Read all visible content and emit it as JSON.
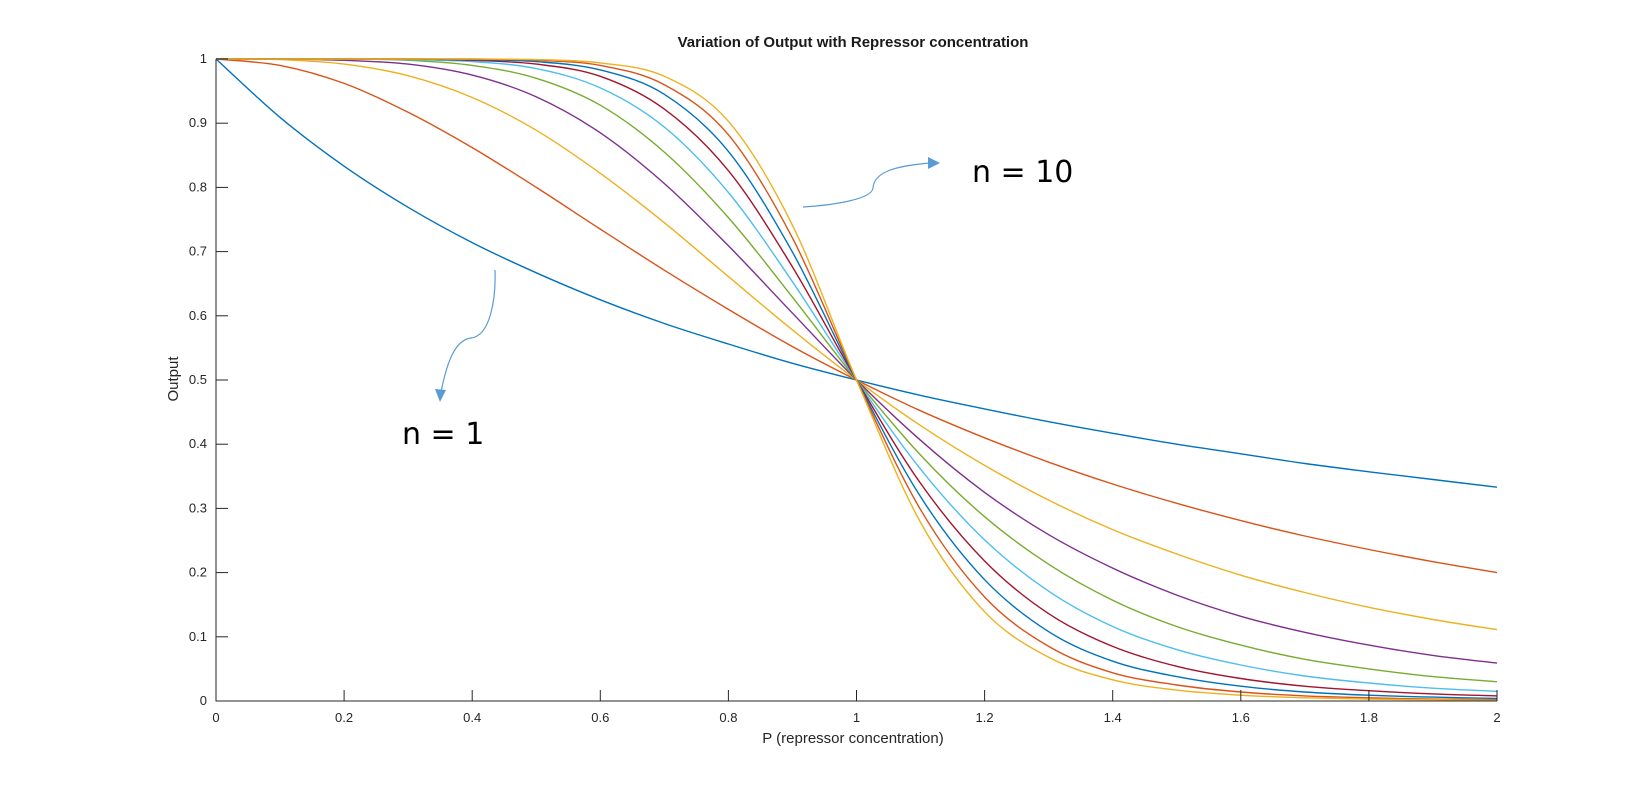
{
  "chart_data": {
    "type": "line",
    "title": "Variation of Output with Repressor concentration",
    "xlabel": "P (repressor concentration)",
    "ylabel": "Output",
    "xlim": [
      0,
      2
    ],
    "ylim": [
      0,
      1
    ],
    "x_ticks": [
      "0",
      "0.2",
      "0.4",
      "0.6",
      "0.8",
      "1",
      "1.2",
      "1.4",
      "1.6",
      "1.8",
      "2"
    ],
    "y_ticks": [
      "0",
      "0.1",
      "0.2",
      "0.3",
      "0.4",
      "0.5",
      "0.6",
      "0.7",
      "0.8",
      "0.9",
      "1"
    ],
    "grid": false,
    "legend": "none",
    "x": [
      0,
      0.1,
      0.2,
      0.3,
      0.4,
      0.5,
      0.6,
      0.7,
      0.8,
      0.9,
      1.0,
      1.1,
      1.2,
      1.3,
      1.4,
      1.5,
      1.6,
      1.7,
      1.8,
      1.9,
      2.0
    ],
    "series": [
      {
        "color": "#0072bd",
        "values": [
          1,
          0.909,
          0.833,
          0.769,
          0.714,
          0.667,
          0.625,
          0.588,
          0.556,
          0.526,
          0.5,
          0.476,
          0.455,
          0.435,
          0.417,
          0.4,
          0.385,
          0.37,
          0.357,
          0.345,
          0.333
        ]
      },
      {
        "color": "#d95319",
        "values": [
          1,
          0.99,
          0.962,
          0.917,
          0.862,
          0.8,
          0.735,
          0.671,
          0.61,
          0.552,
          0.5,
          0.452,
          0.41,
          0.372,
          0.338,
          0.308,
          0.281,
          0.257,
          0.236,
          0.217,
          0.2
        ]
      },
      {
        "color": "#edb120",
        "values": [
          1,
          0.999,
          0.992,
          0.974,
          0.94,
          0.889,
          0.822,
          0.745,
          0.661,
          0.578,
          0.5,
          0.429,
          0.367,
          0.313,
          0.267,
          0.229,
          0.196,
          0.169,
          0.146,
          0.127,
          0.111
        ]
      },
      {
        "color": "#7e2f8e",
        "values": [
          1,
          1,
          0.998,
          0.992,
          0.975,
          0.941,
          0.885,
          0.806,
          0.709,
          0.604,
          0.5,
          0.406,
          0.325,
          0.259,
          0.207,
          0.165,
          0.132,
          0.107,
          0.087,
          0.071,
          0.059
        ]
      },
      {
        "color": "#77ac30",
        "values": [
          1,
          1,
          1,
          0.998,
          0.99,
          0.97,
          0.928,
          0.855,
          0.753,
          0.629,
          0.5,
          0.383,
          0.287,
          0.213,
          0.157,
          0.116,
          0.087,
          0.065,
          0.05,
          0.038,
          0.03
        ]
      },
      {
        "color": "#4dbeee",
        "values": [
          1,
          1,
          1,
          0.999,
          0.996,
          0.985,
          0.955,
          0.894,
          0.792,
          0.653,
          0.5,
          0.361,
          0.251,
          0.171,
          0.116,
          0.08,
          0.056,
          0.039,
          0.028,
          0.02,
          0.015
        ]
      },
      {
        "color": "#a2142f",
        "values": [
          1,
          1,
          1,
          1,
          0.998,
          0.992,
          0.973,
          0.922,
          0.826,
          0.676,
          0.5,
          0.339,
          0.218,
          0.136,
          0.085,
          0.054,
          0.035,
          0.023,
          0.016,
          0.011,
          0.008
        ]
      },
      {
        "color": "#0072bd",
        "values": [
          1,
          1,
          1,
          1,
          0.999,
          0.996,
          0.983,
          0.945,
          0.856,
          0.699,
          0.5,
          0.318,
          0.189,
          0.108,
          0.062,
          0.038,
          0.023,
          0.014,
          0.009,
          0.006,
          0.004
        ]
      },
      {
        "color": "#d95319",
        "values": [
          1,
          1,
          1,
          1,
          1,
          0.998,
          0.99,
          0.96,
          0.882,
          0.721,
          0.5,
          0.298,
          0.162,
          0.085,
          0.044,
          0.025,
          0.014,
          0.008,
          0.005,
          0.003,
          0.002
        ]
      },
      {
        "color": "#edb120",
        "values": [
          1,
          1,
          1,
          1,
          1,
          0.999,
          0.994,
          0.973,
          0.903,
          0.741,
          0.5,
          0.278,
          0.139,
          0.068,
          0.033,
          0.017,
          0.009,
          0.005,
          0.003,
          0.002,
          0.001
        ]
      }
    ],
    "annotations": [
      {
        "text": "n = 10",
        "points_to": "steepest curve (orange)"
      },
      {
        "text": "n = 1",
        "points_to": "shallowest curve (blue)"
      }
    ]
  }
}
